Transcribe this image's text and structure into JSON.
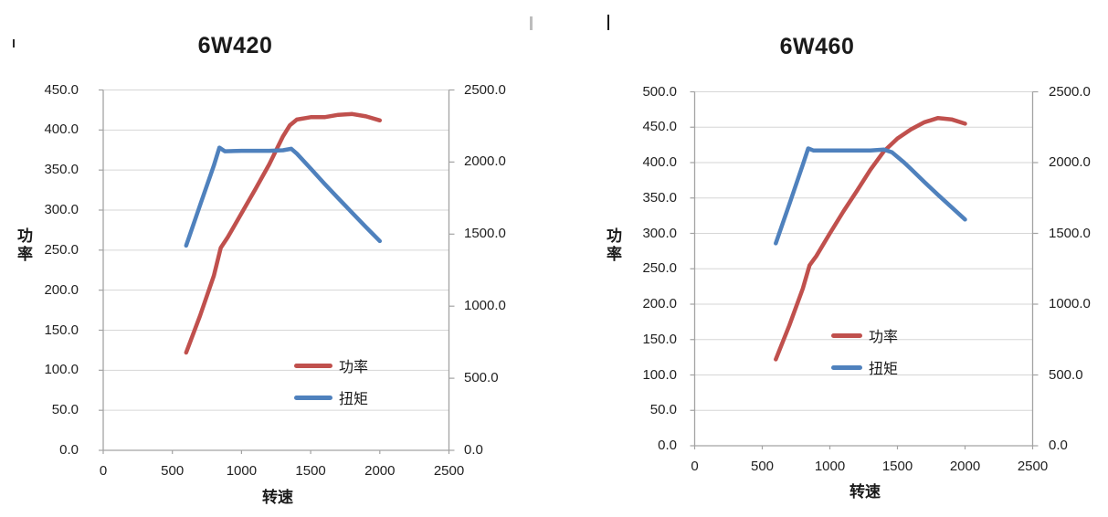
{
  "colors": {
    "power_line": "#C0504D",
    "torque_line": "#4F81BD",
    "gridline": "#D6D6D6",
    "axis_line": "#A3A3A3",
    "text": "#1F1F1F"
  },
  "chart_data": [
    {
      "type": "line",
      "title": "6W420",
      "xlabel": "转速",
      "ylabel": "功率",
      "grid": "horizontal",
      "legend_position": "inside-lower-right",
      "legend": [
        "功率",
        "扭矩"
      ],
      "x_axis": {
        "min": 0,
        "max": 2500,
        "ticks": [
          "0",
          "500",
          "1000",
          "1500",
          "2000",
          "2500"
        ]
      },
      "y_axis_left": {
        "label": "功率",
        "min": 0,
        "max": 450,
        "ticks": [
          "0.0",
          "50.0",
          "100.0",
          "150.0",
          "200.0",
          "250.0",
          "300.0",
          "350.0",
          "400.0",
          "450.0"
        ]
      },
      "y_axis_right": {
        "min": 0,
        "max": 2500,
        "ticks": [
          "0.0",
          "500.0",
          "1000.0",
          "1500.0",
          "2000.0",
          "2500.0"
        ]
      },
      "series": [
        {
          "name": "功率",
          "axis": "left",
          "color": "#C0504D",
          "points": [
            [
              600,
              122
            ],
            [
              700,
              168
            ],
            [
              800,
              218
            ],
            [
              850,
              253
            ],
            [
              900,
              266
            ],
            [
              1000,
              296
            ],
            [
              1100,
              326
            ],
            [
              1200,
              357
            ],
            [
              1300,
              392
            ],
            [
              1350,
              406
            ],
            [
              1400,
              413
            ],
            [
              1500,
              416
            ],
            [
              1600,
              416
            ],
            [
              1700,
              419
            ],
            [
              1800,
              420
            ],
            [
              1900,
              417
            ],
            [
              2000,
              412
            ]
          ]
        },
        {
          "name": "扭矩",
          "axis": "right",
          "color": "#4F81BD",
          "points": [
            [
              600,
              1420
            ],
            [
              700,
              1700
            ],
            [
              800,
              1975
            ],
            [
              840,
              2100
            ],
            [
              880,
              2075
            ],
            [
              1000,
              2078
            ],
            [
              1100,
              2078
            ],
            [
              1200,
              2078
            ],
            [
              1300,
              2082
            ],
            [
              1360,
              2092
            ],
            [
              1400,
              2058
            ],
            [
              1500,
              1955
            ],
            [
              1600,
              1850
            ],
            [
              1700,
              1748
            ],
            [
              1800,
              1648
            ],
            [
              1900,
              1548
            ],
            [
              2000,
              1452
            ]
          ]
        }
      ]
    },
    {
      "type": "line",
      "title": "6W460",
      "xlabel": "转速",
      "ylabel": "功率",
      "grid": "horizontal",
      "legend_position": "inside-lower-right",
      "legend": [
        "功率",
        "扭矩"
      ],
      "x_axis": {
        "min": 0,
        "max": 2500,
        "ticks": [
          "0",
          "500",
          "1000",
          "1500",
          "2000",
          "2500"
        ]
      },
      "y_axis_left": {
        "label": "功率",
        "min": 0,
        "max": 500,
        "ticks": [
          "0.0",
          "50.0",
          "100.0",
          "150.0",
          "200.0",
          "250.0",
          "300.0",
          "350.0",
          "400.0",
          "450.0",
          "500.0"
        ]
      },
      "y_axis_right": {
        "min": 0,
        "max": 2500,
        "ticks": [
          "0.0",
          "500.0",
          "1000.0",
          "1500.0",
          "2000.0",
          "2500.0"
        ]
      },
      "series": [
        {
          "name": "功率",
          "axis": "left",
          "color": "#C0504D",
          "points": [
            [
              600,
              122
            ],
            [
              700,
              170
            ],
            [
              800,
              222
            ],
            [
              850,
              255
            ],
            [
              900,
              268
            ],
            [
              1000,
              300
            ],
            [
              1100,
              331
            ],
            [
              1200,
              360
            ],
            [
              1300,
              390
            ],
            [
              1400,
              416
            ],
            [
              1500,
              434
            ],
            [
              1600,
              447
            ],
            [
              1700,
              457
            ],
            [
              1800,
              463
            ],
            [
              1900,
              461
            ],
            [
              2000,
              455
            ]
          ]
        },
        {
          "name": "扭矩",
          "axis": "right",
          "color": "#4F81BD",
          "points": [
            [
              600,
              1430
            ],
            [
              700,
              1705
            ],
            [
              800,
              1985
            ],
            [
              840,
              2100
            ],
            [
              880,
              2085
            ],
            [
              1000,
              2085
            ],
            [
              1100,
              2085
            ],
            [
              1200,
              2085
            ],
            [
              1300,
              2085
            ],
            [
              1400,
              2092
            ],
            [
              1460,
              2072
            ],
            [
              1550,
              2000
            ],
            [
              1600,
              1955
            ],
            [
              1700,
              1862
            ],
            [
              1800,
              1772
            ],
            [
              1900,
              1685
            ],
            [
              2000,
              1598
            ]
          ]
        }
      ]
    }
  ]
}
